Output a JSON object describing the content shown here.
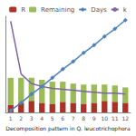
{
  "chart_data": {
    "type": "bar",
    "title": "Decomposition pattern in Q. leucotrichophora",
    "categories": [
      "1",
      "2",
      "3",
      "4",
      "5",
      "6",
      "7",
      "8",
      "9",
      "10",
      "11",
      "12"
    ],
    "series": [
      {
        "name": "R",
        "type": "bar",
        "color": "#a93226",
        "values": [
          8,
          10,
          12,
          10,
          9,
          11,
          10,
          9,
          10,
          12,
          11,
          10
        ]
      },
      {
        "name": "Remaining",
        "type": "bar",
        "color": "#9bbb59",
        "values": [
          28,
          26,
          24,
          24,
          23,
          21,
          20,
          20,
          19,
          17,
          17,
          16
        ]
      },
      {
        "name": "Days",
        "type": "line",
        "color": "#4f81bd",
        "marker": "diamond",
        "values": [
          2,
          10,
          19,
          27,
          36,
          45,
          53,
          62,
          70,
          79,
          87,
          96
        ]
      },
      {
        "name": "k",
        "type": "line",
        "color": "#8064a2",
        "marker": "none",
        "values": [
          95,
          40,
          30,
          27,
          25,
          24,
          23,
          22,
          21,
          20,
          20,
          19
        ]
      }
    ],
    "ylim": [
      0,
      100
    ],
    "yticks": [
      0,
      25,
      50,
      75,
      100
    ],
    "stacked": true,
    "grid": false,
    "legend": "top",
    "tick_labels": "x"
  }
}
